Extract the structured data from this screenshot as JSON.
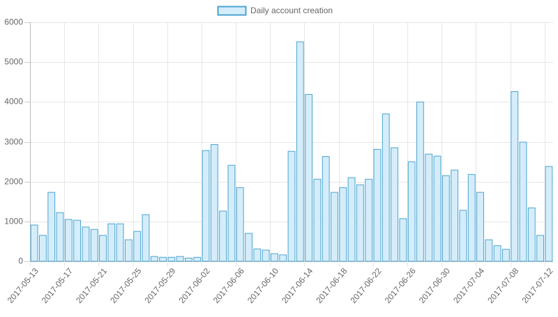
{
  "chart_data": {
    "type": "bar",
    "legend": "top",
    "grid": true,
    "series": [
      {
        "name": "Daily account creation",
        "color": "#4aa3d0",
        "fill": "#d5edfa",
        "values": [
          910,
          650,
          1730,
          1220,
          1050,
          1030,
          860,
          800,
          650,
          940,
          940,
          540,
          750,
          1170,
          120,
          100,
          100,
          120,
          80,
          100,
          2780,
          2930,
          1260,
          2410,
          1850,
          700,
          310,
          280,
          190,
          160,
          2760,
          5510,
          4190,
          2060,
          2630,
          1730,
          1850,
          2100,
          1920,
          2060,
          2810,
          3700,
          2850,
          1070,
          2500,
          4000,
          2690,
          2640,
          2150,
          2290,
          1280,
          2180,
          1730,
          540,
          390,
          300,
          4260,
          2990,
          1340,
          650,
          2380
        ]
      }
    ],
    "categories": [
      "2017-05-13",
      null,
      null,
      null,
      "2017-05-17",
      null,
      null,
      null,
      "2017-05-21",
      null,
      null,
      null,
      "2017-05-25",
      null,
      null,
      null,
      "2017-05-29",
      null,
      null,
      null,
      "2017-06-02",
      null,
      null,
      null,
      "2017-06-06",
      null,
      null,
      null,
      "2017-06-10",
      null,
      null,
      null,
      "2017-06-14",
      null,
      null,
      null,
      "2017-06-18",
      null,
      null,
      null,
      "2017-06-22",
      null,
      null,
      null,
      "2017-06-26",
      null,
      null,
      null,
      "2017-06-30",
      null,
      null,
      null,
      "2017-07-04",
      null,
      null,
      null,
      "2017-07-08",
      null,
      null,
      null,
      "2017-07-12"
    ],
    "ylim": [
      0,
      6000
    ],
    "yticks": [
      0,
      1000,
      2000,
      3000,
      4000,
      5000,
      6000
    ]
  }
}
